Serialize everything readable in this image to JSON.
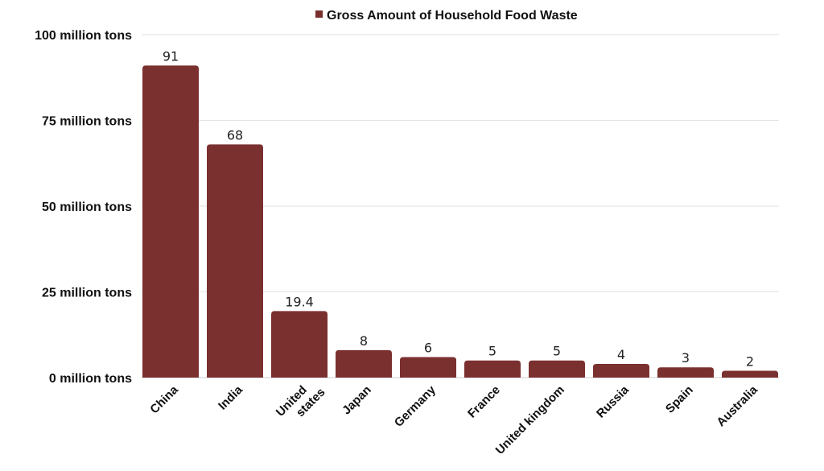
{
  "chart_data": {
    "type": "bar",
    "categories": [
      "China",
      "India",
      "United states",
      "Japan",
      "Germany",
      "France",
      "United kingdom",
      "Russia",
      "Spain",
      "Australia"
    ],
    "series": [
      {
        "name": "Gross Amount of Household Food Waste",
        "values": [
          91,
          68,
          19.4,
          8,
          6,
          5,
          5,
          4,
          3,
          2
        ]
      }
    ],
    "data_labels": [
      "91",
      "68",
      "19.4",
      "8",
      "6",
      "5",
      "5",
      "4",
      "3",
      "2"
    ],
    "ylim": [
      0,
      100
    ],
    "yticks": [
      0,
      25,
      50,
      75,
      100
    ],
    "ytick_labels": [
      "0 million tons",
      "25 million tons",
      "50 million tons",
      "75 million tons",
      "100 million tons"
    ],
    "xlabel": "",
    "ylabel": "",
    "legend_position": "top-center",
    "grid": true,
    "bar_color": "#7b3030"
  }
}
